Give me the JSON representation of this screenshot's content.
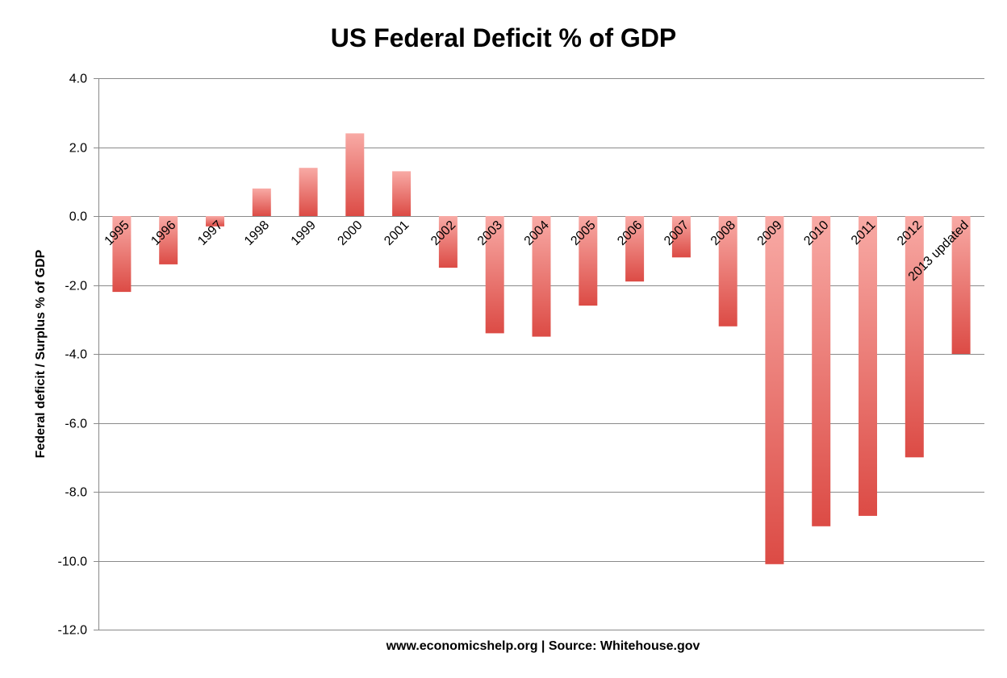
{
  "chart_data": {
    "type": "bar",
    "title": "US Federal Deficit % of GDP",
    "xlabel": "www.economicshelp.org | Source: Whitehouse.gov",
    "ylabel": "Federal deficit / Surplus % of GDP",
    "categories": [
      "1995",
      "1996",
      "1997",
      "1998",
      "1999",
      "2000",
      "2001",
      "2002",
      "2003",
      "2004",
      "2005",
      "2006",
      "2007",
      "2008",
      "2009",
      "2010",
      "2011",
      "2012",
      "2013 updated"
    ],
    "values": [
      -2.2,
      -1.4,
      -0.3,
      0.8,
      1.4,
      2.4,
      1.3,
      -1.5,
      -3.4,
      -3.5,
      -2.6,
      -1.9,
      -1.2,
      -3.2,
      -10.1,
      -9.0,
      -8.7,
      -7.0,
      -4.0
    ],
    "ylim": [
      -12,
      4
    ],
    "yticks": [
      "4.0",
      "2.0",
      "0.0",
      "-2.0",
      "-4.0",
      "-6.0",
      "-8.0",
      "-10.0",
      "-12.0"
    ],
    "grid": true,
    "legend": "none",
    "colors": {
      "bar_light": "#f8aaa5",
      "bar_dark": "#dc4b45",
      "grid": "#8a8a8a"
    }
  }
}
